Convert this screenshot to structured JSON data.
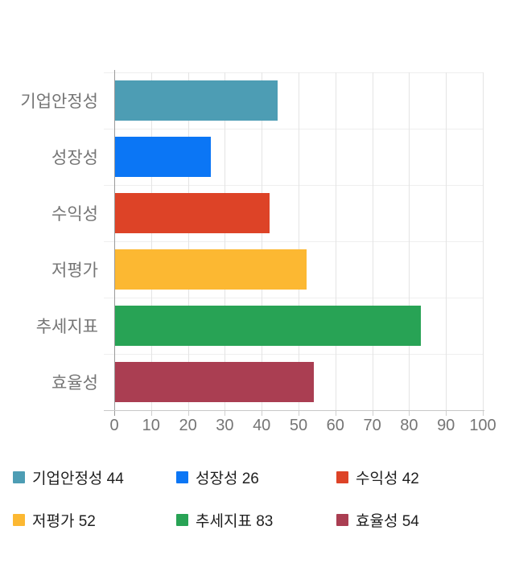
{
  "chart_data": {
    "type": "bar",
    "orientation": "horizontal",
    "title": "",
    "categories": [
      "기업안정성",
      "성장성",
      "수익성",
      "저평가",
      "추세지표",
      "효율성"
    ],
    "values": [
      44,
      26,
      42,
      52,
      83,
      54
    ],
    "bar_colors": [
      "#4D9DB4",
      "#0B76F5",
      "#DD4327",
      "#FCB832",
      "#28A355",
      "#AA3E52"
    ],
    "xlim": [
      0,
      100
    ],
    "x_ticks": [
      "0",
      "10",
      "20",
      "30",
      "40",
      "50",
      "60",
      "70",
      "80",
      "90",
      "100"
    ],
    "grid": "on",
    "legend_position": "bottom"
  },
  "axis_style": {
    "label_color": "#757575",
    "gridline_color": "#e4e4e4",
    "axis_line_color": "#9a9a9a",
    "baseline_color": "#c8c8c8",
    "row_line_color": "#efefef",
    "tick_color": "#cfcfcf"
  },
  "legend": {
    "items": [
      {
        "label": "기업안정성 44",
        "color": "#4D9DB4"
      },
      {
        "label": "성장성 26",
        "color": "#0B76F5"
      },
      {
        "label": "수익성 42",
        "color": "#DD4327"
      },
      {
        "label": "저평가 52",
        "color": "#FCB832"
      },
      {
        "label": "추세지표 83",
        "color": "#28A355"
      },
      {
        "label": "효율성 54",
        "color": "#AA3E52"
      }
    ]
  }
}
